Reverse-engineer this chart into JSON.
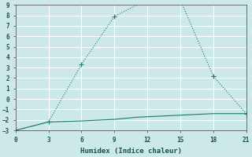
{
  "xlabel": "Humidex (Indice chaleur)",
  "bg_color": "#cce8e8",
  "grid_color": "#ffffff",
  "line_color": "#1a7a6e",
  "x_line1": [
    0,
    3,
    6,
    9,
    12,
    15,
    18,
    21
  ],
  "y_line1": [
    -3,
    -2.2,
    3.3,
    7.9,
    9.5,
    9.5,
    2.2,
    -1.4
  ],
  "x_line2": [
    0,
    3,
    6,
    7,
    8,
    9,
    10,
    11,
    12,
    13,
    14,
    15,
    16,
    17,
    18,
    19,
    20,
    21
  ],
  "y_line2": [
    -3,
    -2.2,
    -2.1,
    -2.05,
    -2.0,
    -1.95,
    -1.85,
    -1.75,
    -1.7,
    -1.65,
    -1.6,
    -1.55,
    -1.5,
    -1.45,
    -1.4,
    -1.4,
    -1.4,
    -1.4
  ],
  "xlim": [
    0,
    21
  ],
  "ylim": [
    -3,
    9
  ],
  "xticks": [
    0,
    3,
    6,
    9,
    12,
    15,
    18,
    21
  ],
  "yticks": [
    -3,
    -2,
    -1,
    0,
    1,
    2,
    3,
    4,
    5,
    6,
    7,
    8,
    9
  ]
}
